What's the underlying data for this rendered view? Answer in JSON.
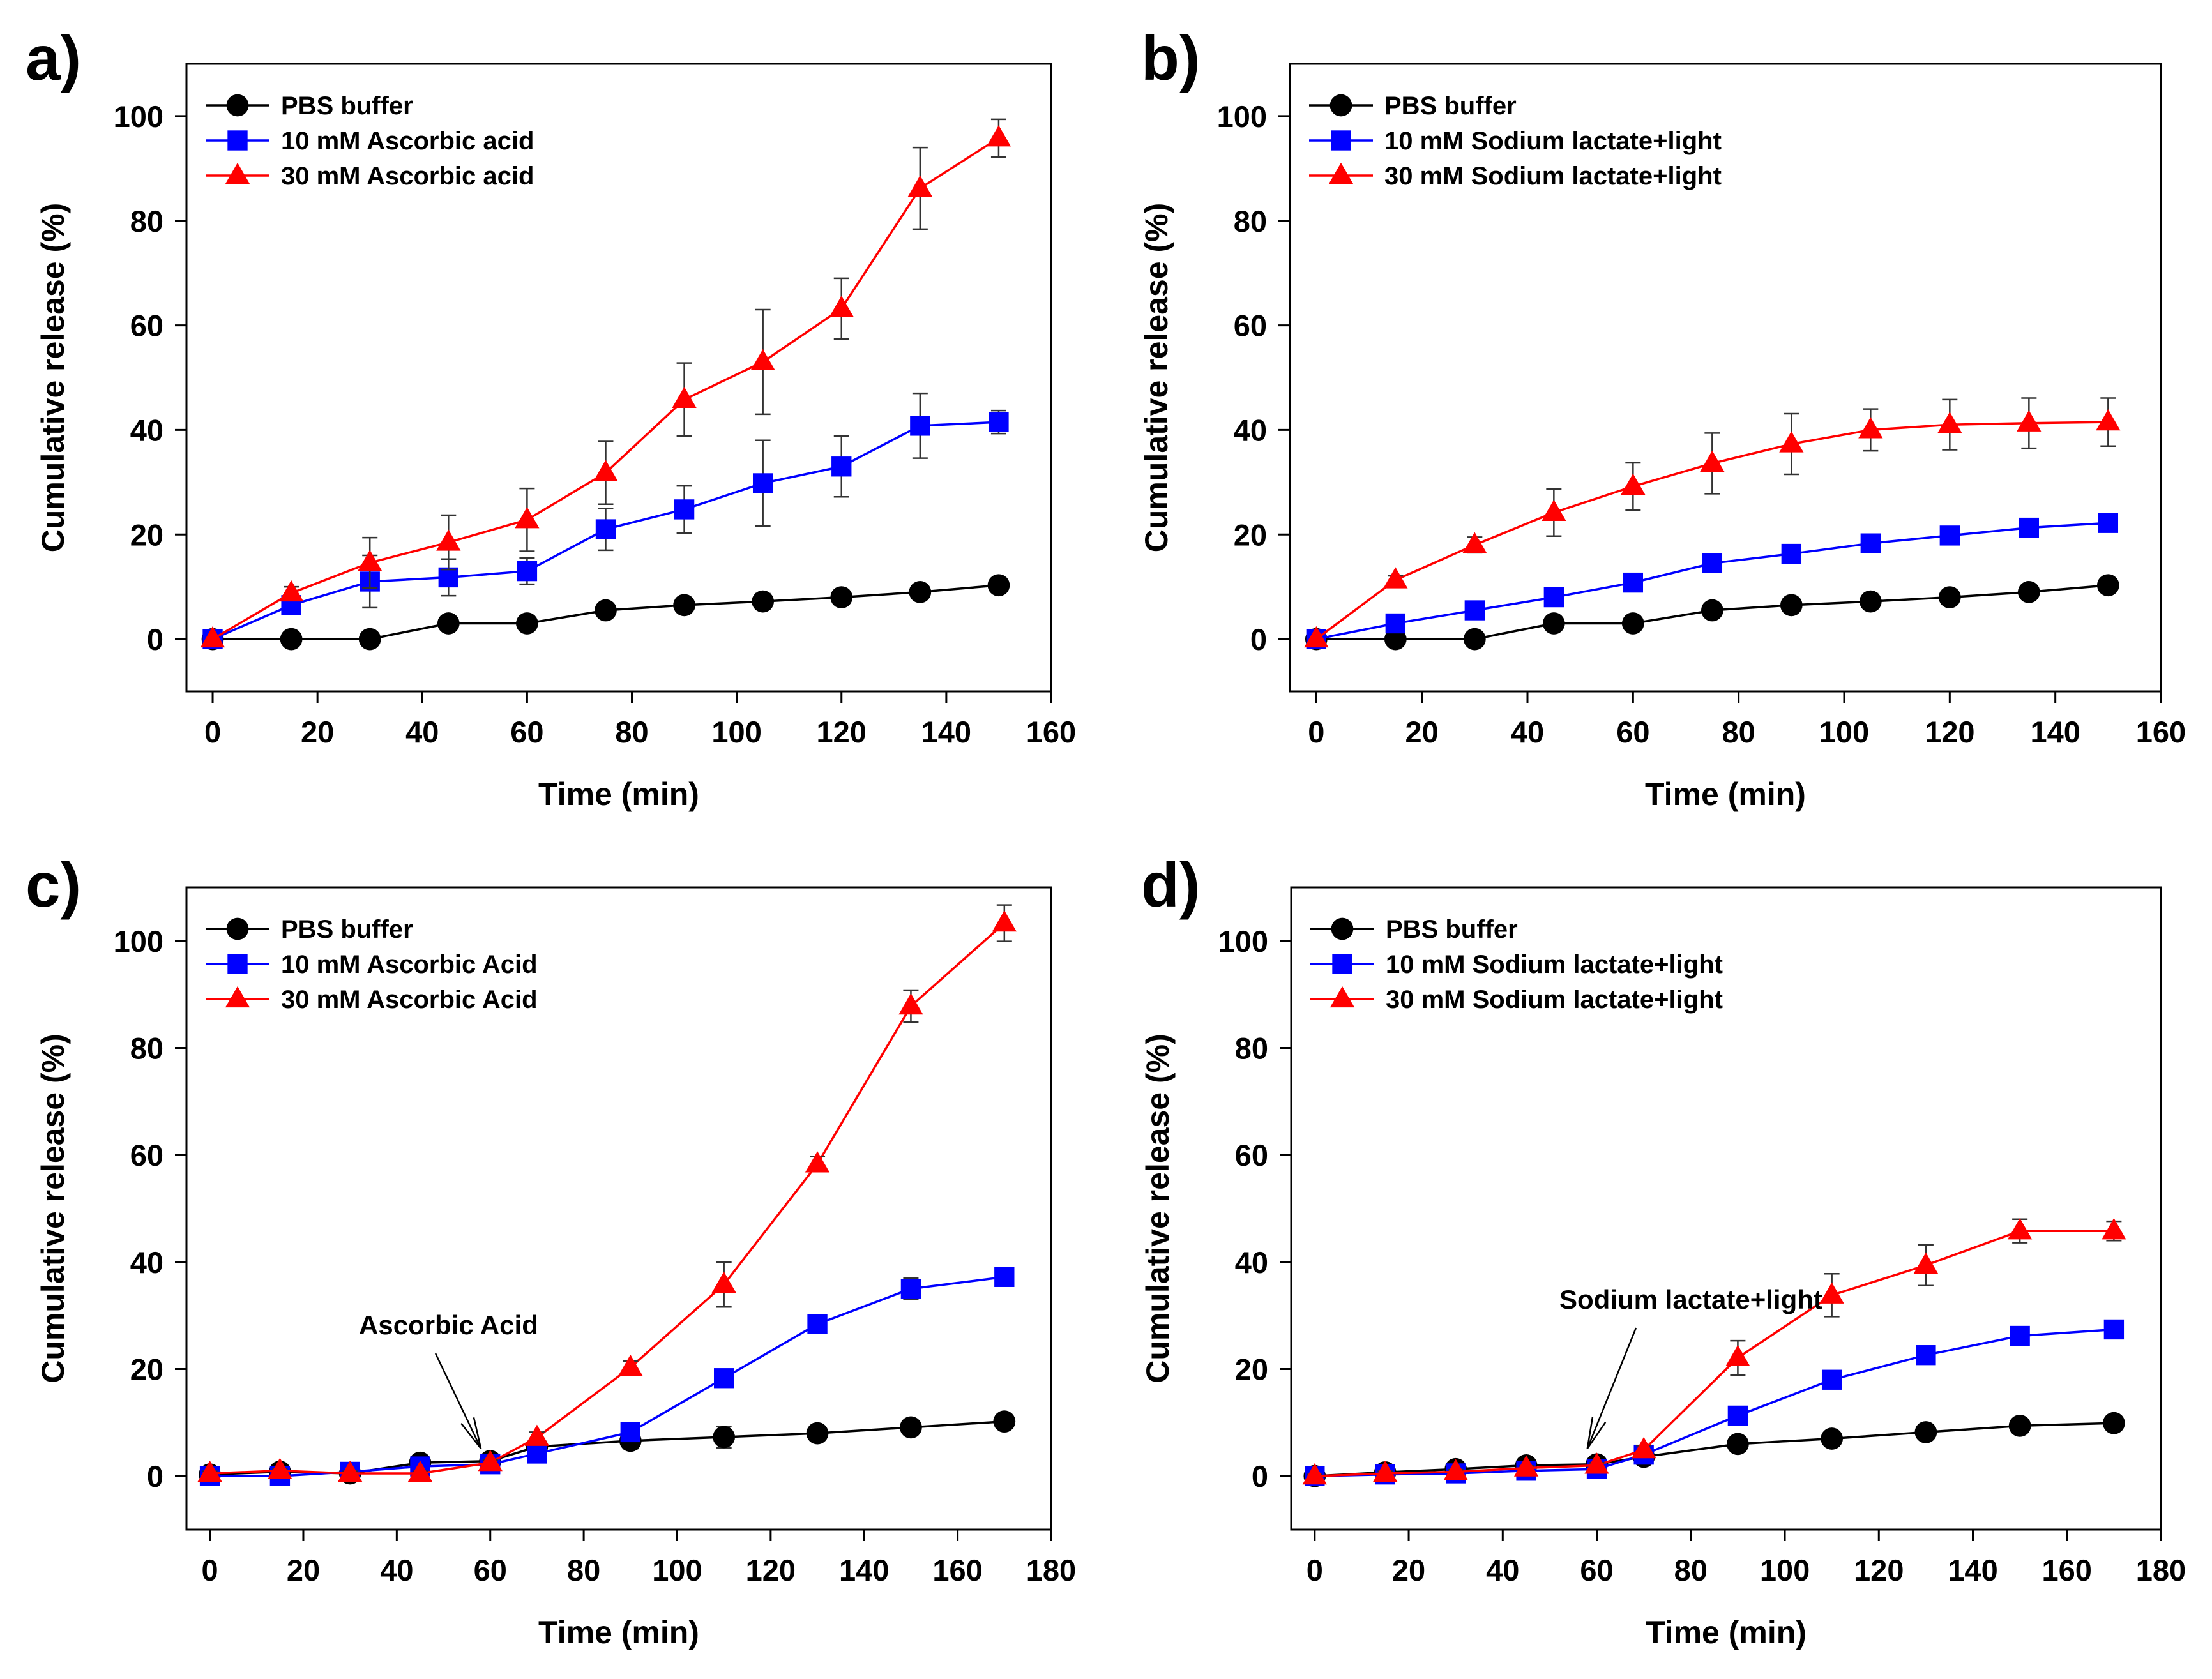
{
  "colors": {
    "black": "#000000",
    "blue": "#0000ff",
    "red": "#ff0000",
    "grey": "#555555"
  },
  "chart_data": [
    {
      "panel": "a)",
      "type": "line",
      "xlabel": "Time (min)",
      "ylabel": "Cumulative release (%)",
      "xlim": [
        -5,
        160
      ],
      "ylim": [
        -10,
        110
      ],
      "xticks": [
        0,
        20,
        40,
        60,
        80,
        100,
        120,
        140,
        160
      ],
      "yticks": [
        0,
        20,
        40,
        60,
        80,
        100
      ],
      "grid": false,
      "legend_position": "top-left",
      "x": [
        0,
        15,
        30,
        45,
        60,
        75,
        90,
        105,
        120,
        135,
        150
      ],
      "series": [
        {
          "name": "PBS buffer",
          "color": "#000000",
          "marker": "circle",
          "values": [
            0,
            0,
            0,
            3,
            3,
            5.5,
            6.5,
            7.2,
            8,
            9,
            10.3
          ],
          "errors": [
            0,
            0,
            0,
            0.5,
            0.5,
            0.8,
            0.8,
            1.5,
            1,
            0.8,
            0.8
          ]
        },
        {
          "name": "10 mM Ascorbic acid",
          "color": "#0000ff",
          "marker": "square",
          "values": [
            0,
            6.5,
            11,
            11.8,
            13,
            21,
            24.8,
            29.8,
            33,
            40.8,
            41.5
          ],
          "errors": [
            0,
            1.5,
            5,
            3.5,
            2.5,
            4,
            4.5,
            8.2,
            5.8,
            6.2,
            2.2
          ]
        },
        {
          "name": "30 mM Ascorbic acid",
          "color": "#ff0000",
          "marker": "triangle",
          "values": [
            0,
            8.8,
            14.6,
            18.5,
            22.8,
            31.8,
            45.8,
            53,
            63.2,
            86.2,
            95.8
          ],
          "errors": [
            0,
            1.2,
            4.8,
            5.2,
            6,
            6,
            7,
            10,
            5.8,
            7.8,
            3.6
          ]
        }
      ]
    },
    {
      "panel": "b)",
      "type": "line",
      "xlabel": "Time (min)",
      "ylabel": "Cumulative release (%)",
      "xlim": [
        -5,
        160
      ],
      "ylim": [
        -10,
        110
      ],
      "xticks": [
        0,
        20,
        40,
        60,
        80,
        100,
        120,
        140,
        160
      ],
      "yticks": [
        0,
        20,
        40,
        60,
        80,
        100
      ],
      "grid": false,
      "legend_position": "top-left",
      "x": [
        0,
        15,
        30,
        45,
        60,
        75,
        90,
        105,
        120,
        135,
        150
      ],
      "series": [
        {
          "name": "PBS buffer",
          "color": "#000000",
          "marker": "circle",
          "values": [
            0,
            0,
            0,
            3,
            3,
            5.5,
            6.5,
            7.2,
            8,
            9,
            10.3
          ],
          "errors": [
            0,
            0,
            0,
            0.5,
            0.5,
            0.8,
            0.8,
            1.5,
            1,
            0.8,
            0.8
          ]
        },
        {
          "name": "10 mM Sodium lactate+light",
          "color": "#0000ff",
          "marker": "square",
          "values": [
            0,
            3,
            5.5,
            8,
            10.8,
            14.5,
            16.3,
            18.3,
            19.8,
            21.3,
            22.2
          ],
          "errors": [
            0,
            0.5,
            0.8,
            0.8,
            1,
            1,
            1,
            1,
            1,
            1,
            1
          ]
        },
        {
          "name": "30 mM Sodium lactate+light",
          "color": "#ff0000",
          "marker": "triangle",
          "values": [
            0,
            11.3,
            18,
            24.2,
            29.2,
            33.6,
            37.3,
            40,
            41,
            41.3,
            41.5
          ],
          "errors": [
            0,
            0.8,
            1.5,
            4.5,
            4.5,
            5.8,
            5.8,
            4,
            4.8,
            4.8,
            4.6
          ]
        }
      ]
    },
    {
      "panel": "c)",
      "type": "line",
      "xlabel": "Time (min)",
      "ylabel": "Cumulative release (%)",
      "xlim": [
        -5,
        180
      ],
      "ylim": [
        -10,
        110
      ],
      "xticks": [
        0,
        20,
        40,
        60,
        80,
        100,
        120,
        140,
        160,
        180
      ],
      "yticks": [
        0,
        20,
        40,
        60,
        80,
        100
      ],
      "grid": false,
      "legend_position": "top-left",
      "annotation": {
        "text": "Ascorbic Acid",
        "x": 58,
        "y": 3
      },
      "x": [
        0,
        15,
        30,
        45,
        60,
        70,
        90,
        110,
        130,
        150,
        170
      ],
      "series": [
        {
          "name": "PBS buffer",
          "color": "#000000",
          "marker": "circle",
          "values": [
            0.3,
            0.8,
            0.5,
            2.5,
            2.8,
            5.5,
            6.6,
            7.3,
            8,
            9.1,
            10.2
          ],
          "errors": [
            0.4,
            0.5,
            0.5,
            1,
            0.8,
            1,
            1.5,
            2,
            0.8,
            0.8,
            0.8
          ]
        },
        {
          "name": "10 mM Ascorbic Acid",
          "color": "#0000ff",
          "marker": "square",
          "values": [
            0,
            0,
            0.8,
            1.8,
            2.2,
            4.2,
            8.2,
            18.3,
            28.4,
            35,
            37.2
          ],
          "errors": [
            0.3,
            0.4,
            0.6,
            0.6,
            0.6,
            0.8,
            1,
            1.3,
            1.2,
            2,
            1.2
          ]
        },
        {
          "name": "30 mM Ascorbic Acid",
          "color": "#ff0000",
          "marker": "triangle",
          "values": [
            0.5,
            1,
            0.5,
            0.5,
            2.5,
            7.2,
            20.3,
            35.8,
            58.3,
            87.8,
            103.3
          ],
          "errors": [
            0.4,
            0.4,
            0.4,
            0.4,
            0.5,
            1,
            1.2,
            4.2,
            1.4,
            3,
            3.4
          ]
        }
      ]
    },
    {
      "panel": "d)",
      "type": "line",
      "xlabel": "Time (min)",
      "ylabel": "Cumulative release (%)",
      "xlim": [
        -5,
        180
      ],
      "ylim": [
        -10,
        110
      ],
      "xticks": [
        0,
        20,
        40,
        60,
        80,
        100,
        120,
        140,
        160,
        180
      ],
      "yticks": [
        0,
        20,
        40,
        60,
        80,
        100
      ],
      "grid": false,
      "legend_position": "top-left",
      "annotation": {
        "text": "Sodium lactate+light",
        "x": 58,
        "y": 3
      },
      "x": [
        0,
        15,
        30,
        45,
        60,
        70,
        90,
        110,
        130,
        150,
        170
      ],
      "series": [
        {
          "name": "PBS buffer",
          "color": "#000000",
          "marker": "circle",
          "values": [
            0,
            0.7,
            1.3,
            2,
            2.2,
            3.6,
            6,
            7,
            8.2,
            9.4,
            9.9
          ],
          "errors": [
            0.4,
            0.4,
            0.5,
            0.5,
            0.5,
            0.6,
            0.8,
            0.8,
            0.8,
            1,
            1
          ]
        },
        {
          "name": "10 mM Sodium lactate+light",
          "color": "#0000ff",
          "marker": "square",
          "values": [
            0,
            0.3,
            0.5,
            1,
            1.3,
            4,
            11.3,
            18,
            22.6,
            26.2,
            27.4
          ],
          "errors": [
            0.3,
            0.4,
            0.4,
            0.4,
            0.5,
            0.8,
            0.8,
            0.8,
            0.8,
            1.6,
            1.6
          ]
        },
        {
          "name": "30 mM Sodium lactate+light",
          "color": "#ff0000",
          "marker": "triangle",
          "values": [
            0,
            0.5,
            0.8,
            1.5,
            2,
            4.9,
            22.1,
            33.8,
            39.4,
            45.8,
            45.8
          ],
          "errors": [
            0.3,
            0.4,
            0.4,
            0.4,
            0.5,
            0.8,
            3.2,
            4,
            3.8,
            2.2,
            1.8
          ]
        }
      ]
    }
  ]
}
